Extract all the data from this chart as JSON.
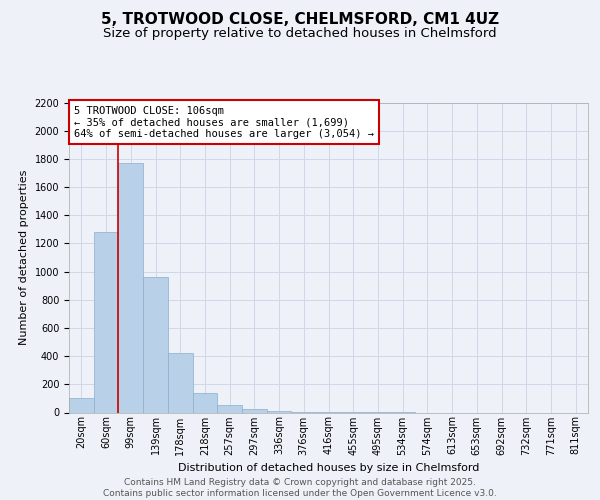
{
  "title_line1": "5, TROTWOOD CLOSE, CHELMSFORD, CM1 4UZ",
  "title_line2": "Size of property relative to detached houses in Chelmsford",
  "xlabel": "Distribution of detached houses by size in Chelmsford",
  "ylabel": "Number of detached properties",
  "categories": [
    "20sqm",
    "60sqm",
    "99sqm",
    "139sqm",
    "178sqm",
    "218sqm",
    "257sqm",
    "297sqm",
    "336sqm",
    "376sqm",
    "416sqm",
    "455sqm",
    "495sqm",
    "534sqm",
    "574sqm",
    "613sqm",
    "653sqm",
    "692sqm",
    "732sqm",
    "771sqm",
    "811sqm"
  ],
  "values": [
    100,
    1280,
    1770,
    960,
    420,
    140,
    50,
    25,
    10,
    5,
    3,
    2,
    1,
    1,
    0,
    0,
    0,
    0,
    0,
    0,
    0
  ],
  "bar_color": "#b8d0e8",
  "bar_edge_color": "#8ab0cc",
  "grid_color": "#cdd8e8",
  "background_color": "#eef2f8",
  "vline_x_index": 2,
  "vline_color": "#cc0000",
  "annotation_text": "5 TROTWOOD CLOSE: 106sqm\n← 35% of detached houses are smaller (1,699)\n64% of semi-detached houses are larger (3,054) →",
  "annotation_box_color": "#cc0000",
  "ylim": [
    0,
    2200
  ],
  "yticks": [
    0,
    200,
    400,
    600,
    800,
    1000,
    1200,
    1400,
    1600,
    1800,
    2000,
    2200
  ],
  "footer_line1": "Contains HM Land Registry data © Crown copyright and database right 2025.",
  "footer_line2": "Contains public sector information licensed under the Open Government Licence v3.0.",
  "title_fontsize": 11,
  "subtitle_fontsize": 9.5,
  "axis_label_fontsize": 8,
  "tick_fontsize": 7,
  "annotation_fontsize": 7.5,
  "footer_fontsize": 6.5
}
